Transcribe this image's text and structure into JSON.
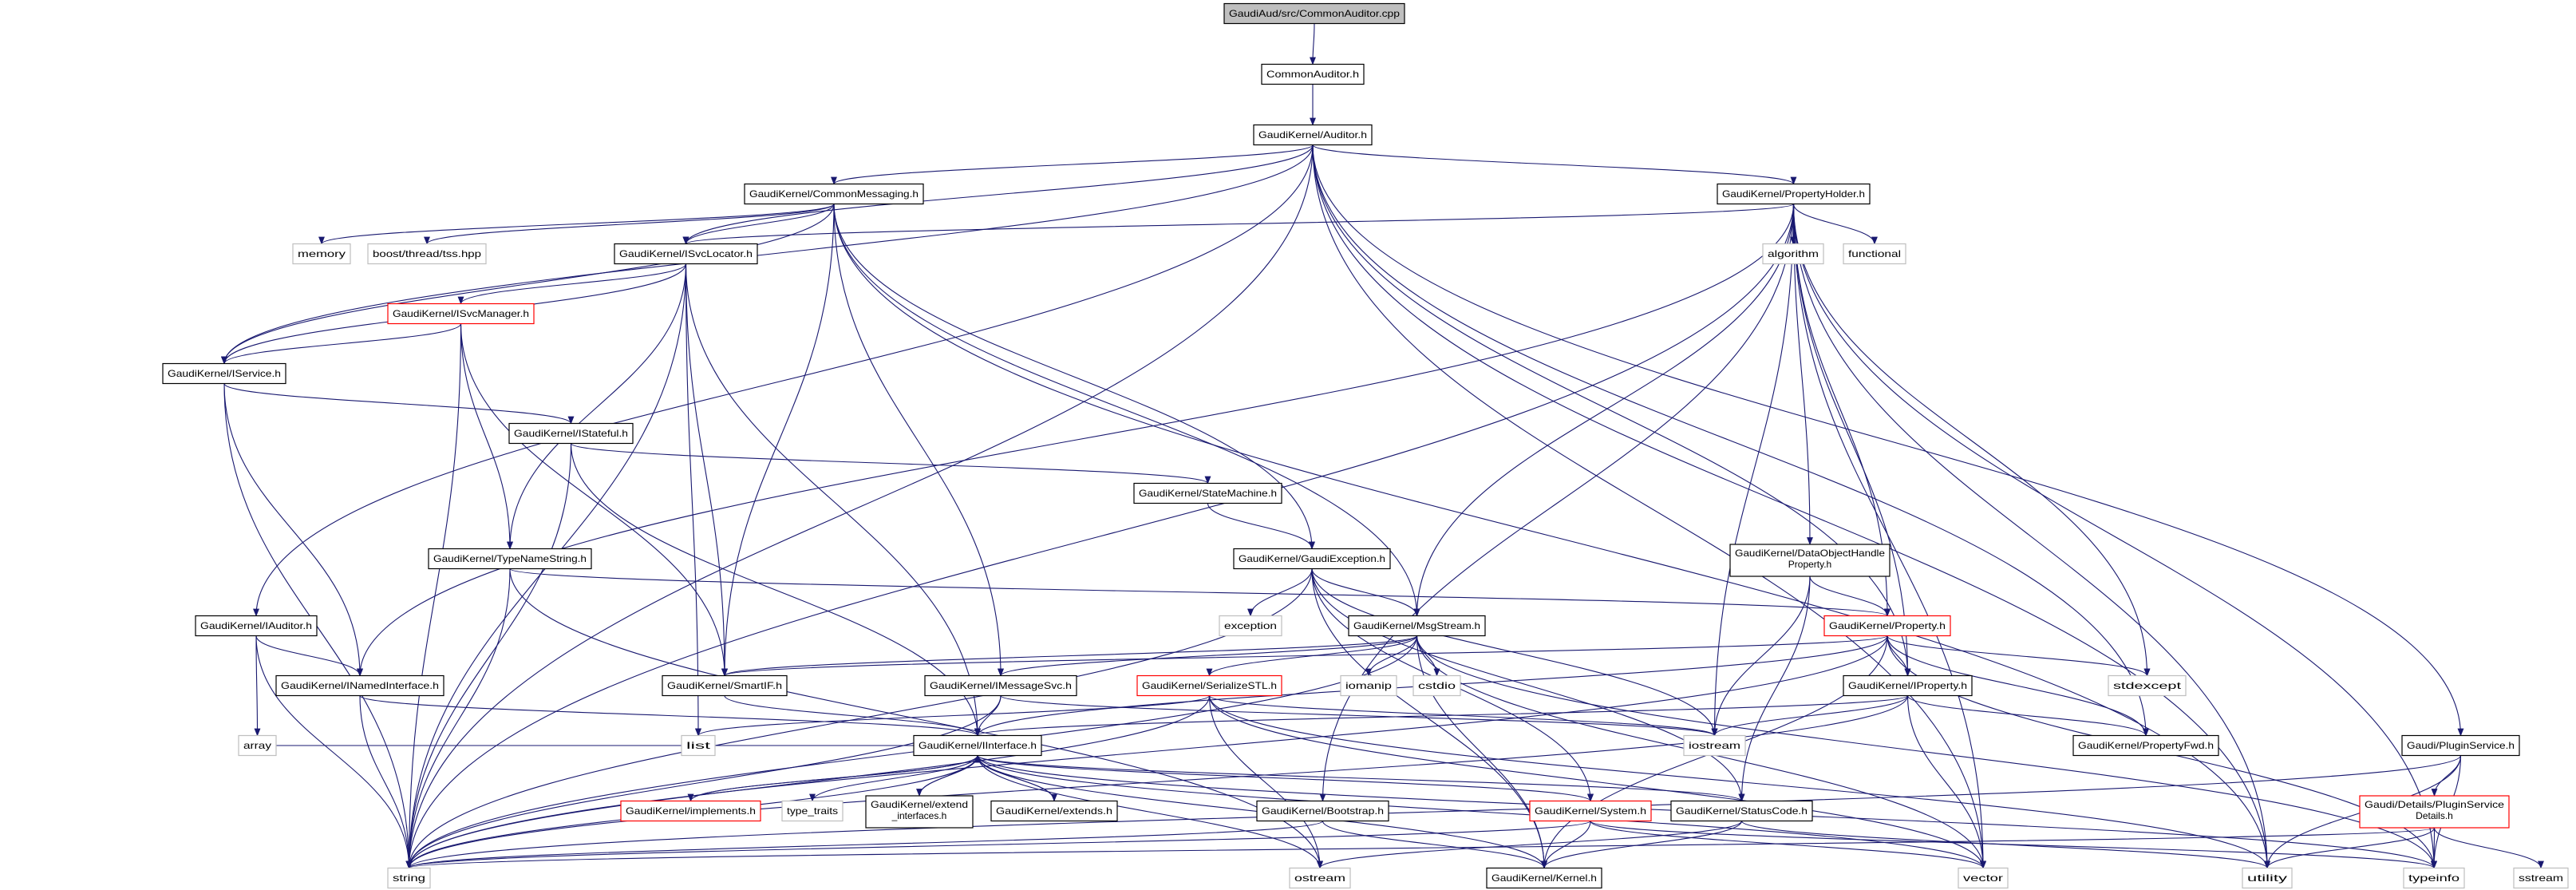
{
  "colors": {
    "edge": "#191970",
    "node_border": "#000000",
    "external_border": "#bfbfbf",
    "truncated_border": "#ff0000",
    "root_fill": "#bfbfbf"
  },
  "graph": {
    "nodes": [
      {
        "id": "root",
        "label": "GaudiAud/src/CommonAuditor.cpp",
        "style": "root"
      },
      {
        "id": "commonauditor",
        "label": "CommonAuditor.h",
        "style": "normal"
      },
      {
        "id": "auditor",
        "label": "GaudiKernel/Auditor.h",
        "style": "normal"
      },
      {
        "id": "commonmessaging",
        "label": "GaudiKernel/CommonMessaging.h",
        "style": "normal"
      },
      {
        "id": "propertyholder",
        "label": "GaudiKernel/PropertyHolder.h",
        "style": "normal"
      },
      {
        "id": "memory",
        "label": "memory",
        "style": "gray"
      },
      {
        "id": "boosttss",
        "label": "boost/thread/tss.hpp",
        "style": "gray"
      },
      {
        "id": "isvclocator",
        "label": "GaudiKernel/ISvcLocator.h",
        "style": "normal"
      },
      {
        "id": "algorithm",
        "label": "algorithm",
        "style": "gray"
      },
      {
        "id": "functional",
        "label": "functional",
        "style": "gray"
      },
      {
        "id": "isvcmanager",
        "label": "GaudiKernel/ISvcManager.h",
        "style": "red"
      },
      {
        "id": "iservice",
        "label": "GaudiKernel/IService.h",
        "style": "normal"
      },
      {
        "id": "istateful",
        "label": "GaudiKernel/IStateful.h",
        "style": "normal"
      },
      {
        "id": "statemachine",
        "label": "GaudiKernel/StateMachine.h",
        "style": "normal"
      },
      {
        "id": "typenamestring",
        "label": "GaudiKernel/TypeNameString.h",
        "style": "normal"
      },
      {
        "id": "gaudiexception",
        "label": "GaudiKernel/GaudiException.h",
        "style": "normal"
      },
      {
        "id": "dohproperty",
        "label": "GaudiKernel/DataObjectHandle",
        "label2": "Property.h",
        "style": "normal"
      },
      {
        "id": "iauditor",
        "label": "GaudiKernel/IAuditor.h",
        "style": "normal"
      },
      {
        "id": "exception",
        "label": "exception",
        "style": "gray"
      },
      {
        "id": "msgstream",
        "label": "GaudiKernel/MsgStream.h",
        "style": "normal"
      },
      {
        "id": "property",
        "label": "GaudiKernel/Property.h",
        "style": "red"
      },
      {
        "id": "inamedinterface",
        "label": "GaudiKernel/INamedInterface.h",
        "style": "normal"
      },
      {
        "id": "smartif",
        "label": "GaudiKernel/SmartIF.h",
        "style": "normal"
      },
      {
        "id": "imessagesvc",
        "label": "GaudiKernel/IMessageSvc.h",
        "style": "normal"
      },
      {
        "id": "serializestl",
        "label": "GaudiKernel/SerializeSTL.h",
        "style": "red"
      },
      {
        "id": "iomanip",
        "label": "iomanip",
        "style": "gray"
      },
      {
        "id": "cstdio",
        "label": "cstdio",
        "style": "gray"
      },
      {
        "id": "iproperty",
        "label": "GaudiKernel/IProperty.h",
        "style": "normal"
      },
      {
        "id": "stdexcept",
        "label": "stdexcept",
        "style": "gray"
      },
      {
        "id": "array",
        "label": "array",
        "style": "gray"
      },
      {
        "id": "list",
        "label": "list",
        "style": "gray"
      },
      {
        "id": "iinterface",
        "label": "GaudiKernel/IInterface.h",
        "style": "normal"
      },
      {
        "id": "iostream",
        "label": "iostream",
        "style": "gray"
      },
      {
        "id": "propertyfwd",
        "label": "GaudiKernel/PropertyFwd.h",
        "style": "normal"
      },
      {
        "id": "pluginservice",
        "label": "Gaudi/PluginService.h",
        "style": "normal"
      },
      {
        "id": "implements",
        "label": "GaudiKernel/implements.h",
        "style": "red"
      },
      {
        "id": "typetraits",
        "label": "type_traits",
        "style": "gray"
      },
      {
        "id": "extendinterfaces",
        "label": "GaudiKernel/extend",
        "label2": "_interfaces.h",
        "style": "normal"
      },
      {
        "id": "extends",
        "label": "GaudiKernel/extends.h",
        "style": "normal"
      },
      {
        "id": "bootstrap",
        "label": "GaudiKernel/Bootstrap.h",
        "style": "normal"
      },
      {
        "id": "system",
        "label": "GaudiKernel/System.h",
        "style": "red"
      },
      {
        "id": "statuscode",
        "label": "GaudiKernel/StatusCode.h",
        "style": "normal"
      },
      {
        "id": "pluginservicedetails",
        "label": "Gaudi/Details/PluginService",
        "label2": "Details.h",
        "style": "red"
      },
      {
        "id": "string",
        "label": "string",
        "style": "gray"
      },
      {
        "id": "ostream",
        "label": "ostream",
        "style": "gray"
      },
      {
        "id": "kernel",
        "label": "GaudiKernel/Kernel.h",
        "style": "normal"
      },
      {
        "id": "vector",
        "label": "vector",
        "style": "gray"
      },
      {
        "id": "utility",
        "label": "utility",
        "style": "gray"
      },
      {
        "id": "typeinfo",
        "label": "typeinfo",
        "style": "gray"
      },
      {
        "id": "sstream",
        "label": "sstream",
        "style": "gray"
      }
    ],
    "edges": [
      [
        "root",
        "commonauditor"
      ],
      [
        "commonauditor",
        "auditor"
      ],
      [
        "auditor",
        "commonmessaging"
      ],
      [
        "auditor",
        "propertyholder"
      ],
      [
        "auditor",
        "isvclocator"
      ],
      [
        "auditor",
        "iservice"
      ],
      [
        "auditor",
        "string"
      ],
      [
        "auditor",
        "iauditor"
      ],
      [
        "auditor",
        "pluginservice"
      ],
      [
        "auditor",
        "iproperty"
      ],
      [
        "auditor",
        "propertyfwd"
      ],
      [
        "auditor",
        "vector"
      ],
      [
        "auditor",
        "utility"
      ],
      [
        "commonmessaging",
        "memory"
      ],
      [
        "commonmessaging",
        "boosttss"
      ],
      [
        "commonmessaging",
        "isvclocator"
      ],
      [
        "commonmessaging",
        "iservice"
      ],
      [
        "commonmessaging",
        "smartif"
      ],
      [
        "commonmessaging",
        "imessagesvc"
      ],
      [
        "commonmessaging",
        "gaudiexception"
      ],
      [
        "commonmessaging",
        "msgstream"
      ],
      [
        "commonmessaging",
        "utility"
      ],
      [
        "propertyholder",
        "isvclocator"
      ],
      [
        "propertyholder",
        "algorithm"
      ],
      [
        "propertyholder",
        "functional"
      ],
      [
        "propertyholder",
        "dohproperty"
      ],
      [
        "propertyholder",
        "property"
      ],
      [
        "propertyholder",
        "iproperty"
      ],
      [
        "propertyholder",
        "msgstream"
      ],
      [
        "propertyholder",
        "iostream"
      ],
      [
        "propertyholder",
        "stdexcept"
      ],
      [
        "propertyholder",
        "vector"
      ],
      [
        "propertyholder",
        "utility"
      ],
      [
        "propertyholder",
        "bootstrap"
      ],
      [
        "propertyholder",
        "string"
      ],
      [
        "propertyholder",
        "inamedinterface"
      ],
      [
        "propertyholder",
        "typeinfo"
      ],
      [
        "isvclocator",
        "isvcmanager"
      ],
      [
        "isvclocator",
        "string"
      ],
      [
        "isvclocator",
        "typenamestring"
      ],
      [
        "isvclocator",
        "smartif"
      ],
      [
        "isvclocator",
        "iinterface"
      ],
      [
        "isvclocator",
        "list"
      ],
      [
        "isvclocator",
        "iservice"
      ],
      [
        "isvcmanager",
        "iservice"
      ],
      [
        "isvcmanager",
        "string"
      ],
      [
        "isvcmanager",
        "typenamestring"
      ],
      [
        "isvcmanager",
        "smartif"
      ],
      [
        "iservice",
        "istateful"
      ],
      [
        "iservice",
        "inamedinterface"
      ],
      [
        "iservice",
        "string"
      ],
      [
        "istateful",
        "statemachine"
      ],
      [
        "istateful",
        "iinterface"
      ],
      [
        "istateful",
        "string"
      ],
      [
        "statemachine",
        "gaudiexception"
      ],
      [
        "typenamestring",
        "property"
      ],
      [
        "typenamestring",
        "string"
      ],
      [
        "typenamestring",
        "ostream"
      ],
      [
        "gaudiexception",
        "exception"
      ],
      [
        "gaudiexception",
        "msgstream"
      ],
      [
        "gaudiexception",
        "string"
      ],
      [
        "gaudiexception",
        "kernel"
      ],
      [
        "gaudiexception",
        "statuscode"
      ],
      [
        "gaudiexception",
        "system"
      ],
      [
        "gaudiexception",
        "iostream"
      ],
      [
        "dohproperty",
        "property"
      ],
      [
        "dohproperty",
        "iostream"
      ],
      [
        "dohproperty",
        "statuscode"
      ],
      [
        "iauditor",
        "inamedinterface"
      ],
      [
        "iauditor",
        "array"
      ],
      [
        "iauditor",
        "string"
      ],
      [
        "msgstream",
        "smartif"
      ],
      [
        "msgstream",
        "imessagesvc"
      ],
      [
        "msgstream",
        "serializestl"
      ],
      [
        "msgstream",
        "iomanip"
      ],
      [
        "msgstream",
        "cstdio"
      ],
      [
        "msgstream",
        "string"
      ],
      [
        "msgstream",
        "vector"
      ],
      [
        "msgstream",
        "kernel"
      ],
      [
        "msgstream",
        "typeinfo"
      ],
      [
        "property",
        "iproperty"
      ],
      [
        "property",
        "stdexcept"
      ],
      [
        "property",
        "propertyfwd"
      ],
      [
        "property",
        "iinterface"
      ],
      [
        "property",
        "string"
      ],
      [
        "property",
        "kernel"
      ],
      [
        "property",
        "typeinfo"
      ],
      [
        "property",
        "smartif"
      ],
      [
        "inamedinterface",
        "iinterface"
      ],
      [
        "inamedinterface",
        "string"
      ],
      [
        "smartif",
        "iinterface"
      ],
      [
        "imessagesvc",
        "iinterface"
      ],
      [
        "imessagesvc",
        "string"
      ],
      [
        "imessagesvc",
        "iostream"
      ],
      [
        "serializestl",
        "string"
      ],
      [
        "serializestl",
        "list"
      ],
      [
        "serializestl",
        "ostream"
      ],
      [
        "serializestl",
        "vector"
      ],
      [
        "serializestl",
        "utility"
      ],
      [
        "serializestl",
        "iostream"
      ],
      [
        "iproperty",
        "iinterface"
      ],
      [
        "iproperty",
        "iostream"
      ],
      [
        "iproperty",
        "vector"
      ],
      [
        "iproperty",
        "propertyfwd"
      ],
      [
        "iproperty",
        "string"
      ],
      [
        "iinterface",
        "implements"
      ],
      [
        "iinterface",
        "typetraits"
      ],
      [
        "iinterface",
        "extendinterfaces"
      ],
      [
        "iinterface",
        "extends"
      ],
      [
        "iinterface",
        "system"
      ],
      [
        "iinterface",
        "statuscode"
      ],
      [
        "iinterface",
        "kernel"
      ],
      [
        "iinterface",
        "ostream"
      ],
      [
        "iinterface",
        "typeinfo"
      ],
      [
        "iinterface",
        "string"
      ],
      [
        "iinterface",
        "vector"
      ],
      [
        "iinterface",
        "array"
      ],
      [
        "implements",
        "iinterface"
      ],
      [
        "extendinterfaces",
        "iinterface"
      ],
      [
        "extends",
        "iinterface"
      ],
      [
        "bootstrap",
        "string"
      ],
      [
        "bootstrap",
        "kernel"
      ],
      [
        "system",
        "string"
      ],
      [
        "system",
        "kernel"
      ],
      [
        "system",
        "vector"
      ],
      [
        "system",
        "typeinfo"
      ],
      [
        "statuscode",
        "ostream"
      ],
      [
        "statuscode",
        "kernel"
      ],
      [
        "statuscode",
        "utility"
      ],
      [
        "pluginservice",
        "pluginservicedetails"
      ],
      [
        "pluginservice",
        "string"
      ],
      [
        "pluginservice",
        "utility"
      ],
      [
        "pluginservice",
        "typeinfo"
      ],
      [
        "pluginservicedetails",
        "string"
      ],
      [
        "pluginservicedetails",
        "utility"
      ],
      [
        "pluginservicedetails",
        "typeinfo"
      ],
      [
        "pluginservicedetails",
        "sstream"
      ]
    ]
  }
}
